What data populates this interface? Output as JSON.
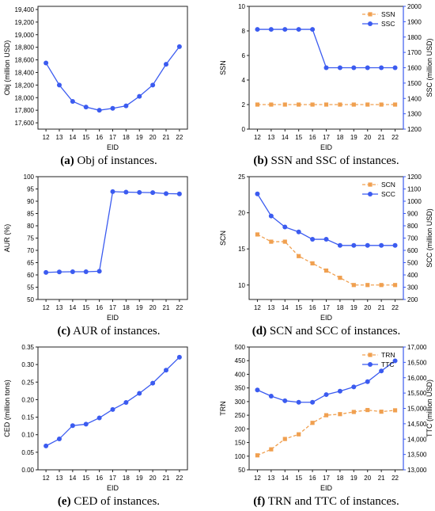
{
  "colors": {
    "blue": "#3b5bf0",
    "orange": "#f0a050",
    "axis": "#222222"
  },
  "chart_data": [
    {
      "type": "line",
      "x": [
        12,
        13,
        14,
        15,
        16,
        17,
        18,
        19,
        20,
        21,
        22
      ],
      "xlabel": "EID",
      "ylabel": "Obj (million USD)",
      "ylim": [
        17500,
        19450
      ],
      "yticks": [
        "17,600",
        "17,800",
        "18,000",
        "18,200",
        "18,400",
        "18,600",
        "18,800",
        "19,000",
        "19,200",
        "19,400"
      ],
      "series": [
        {
          "values": [
            18550,
            18200,
            17940,
            17850,
            17800,
            17830,
            17870,
            18020,
            18200,
            18530,
            18810
          ],
          "color": "#3b5bf0",
          "marker": "circle",
          "dash": false
        }
      ],
      "caption_label": "(a)",
      "caption_text": " Obj of instances."
    },
    {
      "type": "line",
      "x": [
        12,
        13,
        14,
        15,
        16,
        17,
        18,
        19,
        20,
        21,
        22
      ],
      "xlabel": "EID",
      "ylabel": "SSN",
      "ylim": [
        0,
        10
      ],
      "yticks": [
        "0",
        "2",
        "4",
        "6",
        "8",
        "10"
      ],
      "ylabel2": "SSC (million USD)",
      "ylim2": [
        1200,
        2000
      ],
      "yticks2": [
        "1200",
        "1300",
        "1400",
        "1500",
        "1600",
        "1700",
        "1800",
        "1900",
        "2000"
      ],
      "legend": "top-right",
      "series": [
        {
          "name": "SSN",
          "axis": "left",
          "values": [
            2,
            2,
            2,
            2,
            2,
            2,
            2,
            2,
            2,
            2,
            2
          ],
          "color": "#f0a050",
          "marker": "square",
          "dash": true
        },
        {
          "name": "SSC",
          "axis": "right",
          "values": [
            1850,
            1850,
            1850,
            1850,
            1850,
            1600,
            1600,
            1600,
            1600,
            1600,
            1600
          ],
          "color": "#3b5bf0",
          "marker": "circle",
          "dash": false
        }
      ],
      "caption_label": "(b)",
      "caption_text": " SSN and SSC of instances."
    },
    {
      "type": "line",
      "x": [
        12,
        13,
        14,
        15,
        16,
        17,
        18,
        19,
        20,
        21,
        22
      ],
      "xlabel": "EID",
      "ylabel": "AUR (%)",
      "ylim": [
        50,
        100
      ],
      "yticks": [
        "50",
        "55",
        "60",
        "65",
        "70",
        "75",
        "80",
        "85",
        "90",
        "95",
        "100"
      ],
      "series": [
        {
          "values": [
            61,
            61.2,
            61.3,
            61.3,
            61.5,
            93.9,
            93.7,
            93.6,
            93.5,
            93.1,
            93.0
          ],
          "color": "#3b5bf0",
          "marker": "circle",
          "dash": false
        }
      ],
      "caption_label": "(c)",
      "caption_text": " AUR of instances."
    },
    {
      "type": "line",
      "x": [
        12,
        13,
        14,
        15,
        16,
        17,
        18,
        19,
        20,
        21,
        22
      ],
      "xlabel": "EID",
      "ylabel": "SCN",
      "ylim": [
        8,
        25
      ],
      "yticks": [
        "10",
        "15",
        "20",
        "25"
      ],
      "ylabel2": "SCC (million USD)",
      "ylim2": [
        200,
        1200
      ],
      "yticks2": [
        "200",
        "300",
        "400",
        "500",
        "600",
        "700",
        "800",
        "900",
        "1000",
        "1100",
        "1200"
      ],
      "legend": "top-right",
      "series": [
        {
          "name": "SCN",
          "axis": "left",
          "values": [
            17,
            16,
            16,
            14,
            13,
            12,
            11,
            10,
            10,
            10,
            10
          ],
          "color": "#f0a050",
          "marker": "square",
          "dash": true
        },
        {
          "name": "SCC",
          "axis": "right",
          "values": [
            1060,
            880,
            790,
            750,
            690,
            690,
            640,
            640,
            640,
            640,
            640
          ],
          "color": "#3b5bf0",
          "marker": "circle",
          "dash": false
        }
      ],
      "caption_label": "(d)",
      "caption_text": " SCN and SCC of instances."
    },
    {
      "type": "line",
      "x": [
        12,
        13,
        14,
        15,
        16,
        17,
        18,
        19,
        20,
        21,
        22
      ],
      "xlabel": "EID",
      "ylabel": "CED (million tons)",
      "ylim": [
        0,
        0.35
      ],
      "yticks": [
        "0.00",
        "0.05",
        "0.10",
        "0.15",
        "0.20",
        "0.25",
        "0.30",
        "0.35"
      ],
      "series": [
        {
          "values": [
            0.068,
            0.088,
            0.126,
            0.13,
            0.148,
            0.172,
            0.192,
            0.218,
            0.247,
            0.284,
            0.321
          ],
          "color": "#3b5bf0",
          "marker": "circle",
          "dash": false
        }
      ],
      "caption_label": "(e)",
      "caption_text": " CED of instances."
    },
    {
      "type": "line",
      "x": [
        12,
        13,
        14,
        15,
        16,
        17,
        18,
        19,
        20,
        21,
        22
      ],
      "xlabel": "EID",
      "ylabel": "TRN",
      "ylim": [
        50,
        500
      ],
      "yticks": [
        "50",
        "100",
        "150",
        "200",
        "250",
        "300",
        "350",
        "400",
        "450",
        "500"
      ],
      "ylabel2": "TTC (million USD)",
      "ylim2": [
        13000,
        17000
      ],
      "yticks2": [
        "13,000",
        "13,500",
        "14,000",
        "14,500",
        "15,000",
        "15,500",
        "16,000",
        "16,500",
        "17,000"
      ],
      "legend": "top-right",
      "series": [
        {
          "name": "TRN",
          "axis": "left",
          "values": [
            103,
            125,
            163,
            180,
            222,
            250,
            254,
            262,
            269,
            263,
            268
          ],
          "color": "#f0a050",
          "marker": "square",
          "dash": true
        },
        {
          "name": "TTC",
          "axis": "right",
          "values": [
            15600,
            15400,
            15250,
            15200,
            15200,
            15450,
            15560,
            15700,
            15870,
            16220,
            16550
          ],
          "color": "#3b5bf0",
          "marker": "circle",
          "dash": false
        }
      ],
      "caption_label": "(f)",
      "caption_text": " TRN and TTC of instances."
    }
  ]
}
